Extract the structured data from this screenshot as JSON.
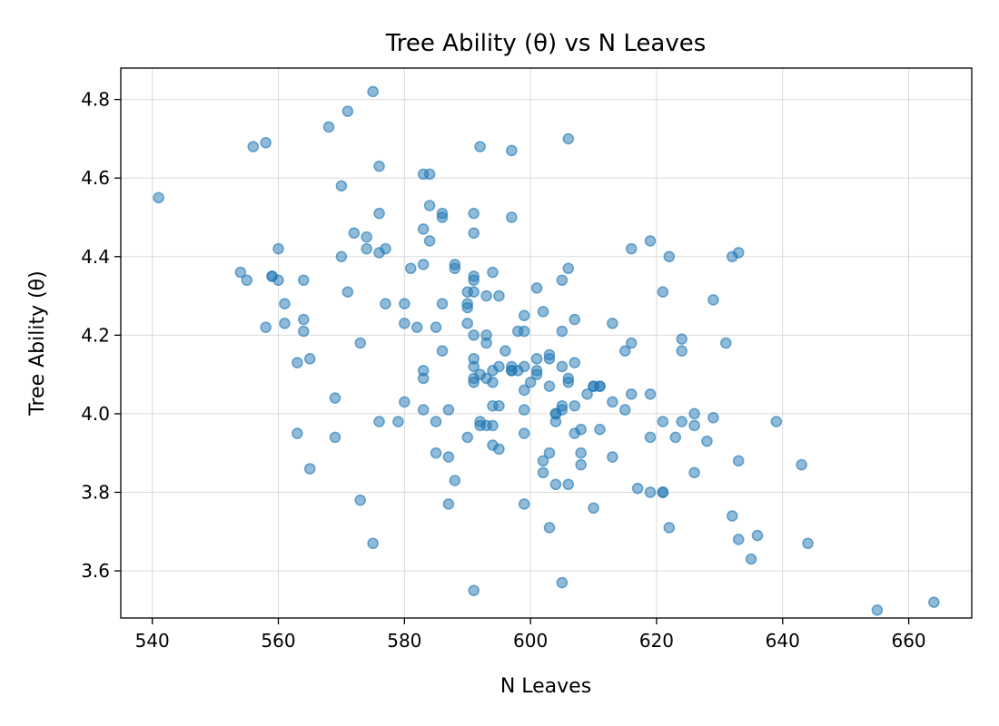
{
  "chart_data": {
    "type": "scatter",
    "title": "Tree Ability (θ) vs N Leaves",
    "xlabel": "N Leaves",
    "ylabel": "Tree Ability (θ)",
    "xlim": [
      535,
      670
    ],
    "ylim": [
      3.48,
      4.88
    ],
    "xticks": [
      540,
      560,
      580,
      600,
      620,
      640,
      660
    ],
    "yticks": [
      3.6,
      3.8,
      4.0,
      4.2,
      4.4,
      4.6,
      4.8
    ],
    "grid": true,
    "color": "#1f77b4",
    "series": [
      {
        "x": [
          541,
          555,
          556,
          558,
          554,
          558,
          559,
          560,
          559,
          560,
          561,
          561,
          564,
          564,
          564,
          565,
          563,
          563,
          565,
          569,
          569,
          568,
          570,
          570,
          571,
          571,
          572,
          573,
          573,
          574,
          574,
          575,
          575,
          576,
          576,
          576,
          577,
          577,
          576,
          579,
          580,
          580,
          580,
          581,
          582,
          583,
          583,
          583,
          583,
          583,
          583,
          584,
          584,
          584,
          585,
          585,
          585,
          586,
          586,
          586,
          586,
          587,
          587,
          587,
          588,
          588,
          588,
          590,
          590,
          590,
          590,
          590,
          591,
          591,
          591,
          591,
          591,
          591,
          591,
          591,
          591,
          591,
          591,
          592,
          592,
          592,
          592,
          593,
          593,
          593,
          593,
          593,
          594,
          594,
          594,
          594,
          594,
          594,
          595,
          595,
          595,
          595,
          596,
          597,
          597,
          597,
          597,
          597,
          598,
          598,
          599,
          599,
          599,
          599,
          599,
          599,
          599,
          600,
          601,
          601,
          601,
          601,
          602,
          602,
          602,
          603,
          603,
          603,
          603,
          603,
          604,
          604,
          604,
          604,
          605,
          605,
          605,
          605,
          605,
          605,
          606,
          606,
          606,
          606,
          606,
          607,
          607,
          607,
          607,
          608,
          608,
          608,
          609,
          610,
          610,
          610,
          611,
          611,
          611,
          613,
          613,
          613,
          615,
          615,
          616,
          616,
          616,
          617,
          619,
          619,
          619,
          619,
          621,
          621,
          621,
          621,
          622,
          622,
          623,
          624,
          624,
          624,
          626,
          626,
          626,
          628,
          629,
          629,
          631,
          632,
          632,
          633,
          633,
          633,
          635,
          636,
          639,
          643,
          644,
          655,
          664
        ],
        "y": [
          4.55,
          4.34,
          4.68,
          4.69,
          4.36,
          4.22,
          4.35,
          4.34,
          4.35,
          4.42,
          4.28,
          4.23,
          4.34,
          4.24,
          4.21,
          4.14,
          4.13,
          3.95,
          3.86,
          4.04,
          3.94,
          4.73,
          4.58,
          4.4,
          4.77,
          4.31,
          4.46,
          4.18,
          3.78,
          4.42,
          4.45,
          4.82,
          3.67,
          4.63,
          4.51,
          4.41,
          4.42,
          4.28,
          3.98,
          3.98,
          4.28,
          4.23,
          4.03,
          4.37,
          4.22,
          4.61,
          4.47,
          4.38,
          4.11,
          4.09,
          4.01,
          4.61,
          4.53,
          4.44,
          4.22,
          3.98,
          3.9,
          4.51,
          4.5,
          4.28,
          4.16,
          4.01,
          3.89,
          3.77,
          4.38,
          4.37,
          3.83,
          4.31,
          4.28,
          4.27,
          4.23,
          3.94,
          4.51,
          4.46,
          4.35,
          4.34,
          4.31,
          4.2,
          4.14,
          4.12,
          4.09,
          4.08,
          3.55,
          4.68,
          4.1,
          3.98,
          3.97,
          4.3,
          4.2,
          4.18,
          4.09,
          3.97,
          4.36,
          4.11,
          4.08,
          4.02,
          3.97,
          3.92,
          4.3,
          4.12,
          4.02,
          3.91,
          4.16,
          4.67,
          4.5,
          4.12,
          4.11,
          4.11,
          4.21,
          4.11,
          4.25,
          4.21,
          4.12,
          4.06,
          4.01,
          3.95,
          3.77,
          4.08,
          4.32,
          4.14,
          4.11,
          4.1,
          4.26,
          3.88,
          3.85,
          4.14,
          4.15,
          4.07,
          3.9,
          3.71,
          4.0,
          3.98,
          3.82,
          4.0,
          4.34,
          4.21,
          4.12,
          4.02,
          4.01,
          3.57,
          4.7,
          4.37,
          4.09,
          4.08,
          3.82,
          4.24,
          4.13,
          4.02,
          3.95,
          3.96,
          3.9,
          3.87,
          4.05,
          4.07,
          4.07,
          3.76,
          4.07,
          4.07,
          3.96,
          4.23,
          4.03,
          3.89,
          4.16,
          4.01,
          4.42,
          4.18,
          4.05,
          3.81,
          4.44,
          4.05,
          3.94,
          3.8,
          4.31,
          3.98,
          3.8,
          3.8,
          4.4,
          3.71,
          3.94,
          4.19,
          4.16,
          3.98,
          4.0,
          3.97,
          3.85,
          3.93,
          4.29,
          3.99,
          4.18,
          4.4,
          3.74,
          4.41,
          3.88,
          3.68,
          3.63,
          3.69,
          3.98,
          3.87,
          3.67,
          3.5,
          3.52
        ]
      }
    ]
  }
}
